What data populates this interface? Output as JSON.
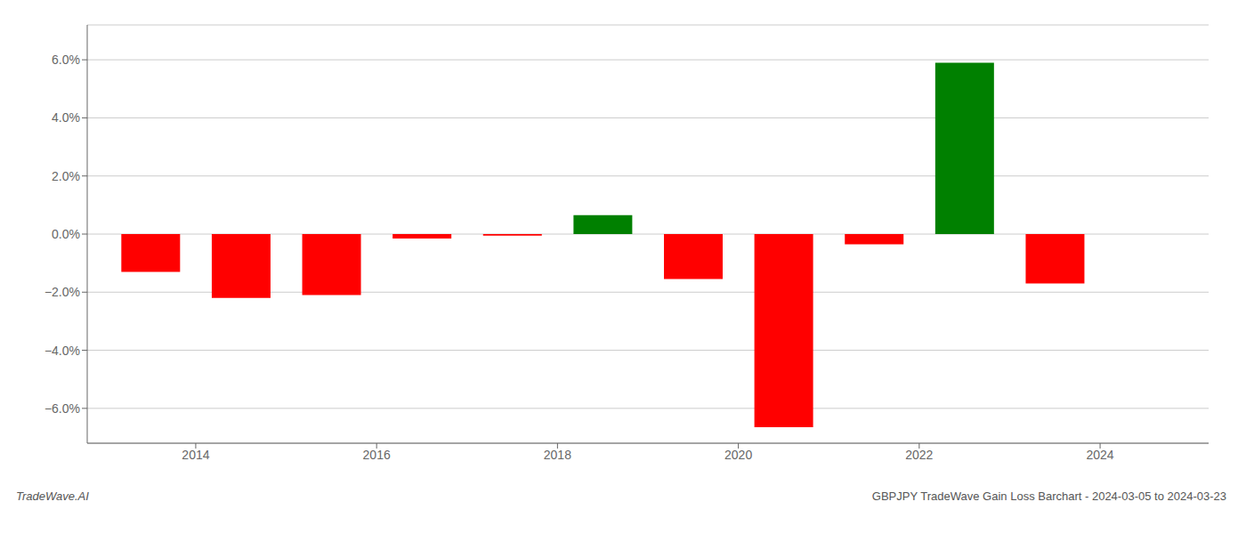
{
  "chart_data": {
    "type": "bar",
    "x": [
      2013.5,
      2014.5,
      2015.5,
      2016.5,
      2017.5,
      2018.5,
      2019.5,
      2020.5,
      2021.5,
      2022.5,
      2023.5
    ],
    "values": [
      -1.3,
      -2.2,
      -2.1,
      -0.15,
      -0.05,
      0.65,
      -1.55,
      -6.65,
      -0.35,
      5.9,
      -1.7
    ],
    "colors": [
      "#ff0000",
      "#ff0000",
      "#ff0000",
      "#ff0000",
      "#ff0000",
      "#008000",
      "#ff0000",
      "#ff0000",
      "#ff0000",
      "#008000",
      "#ff0000"
    ],
    "xlim": [
      2012.8,
      2025.2
    ],
    "xticks": [
      2014,
      2016,
      2018,
      2020,
      2022,
      2024
    ],
    "ylim": [
      -7.2,
      7.2
    ],
    "yticks": [
      {
        "value": -6.0,
        "label": "−6.0%"
      },
      {
        "value": -4.0,
        "label": "−4.0%"
      },
      {
        "value": -2.0,
        "label": "−2.0%"
      },
      {
        "value": 0.0,
        "label": "0.0%"
      },
      {
        "value": 2.0,
        "label": "2.0%"
      },
      {
        "value": 4.0,
        "label": "4.0%"
      },
      {
        "value": 6.0,
        "label": "6.0%"
      }
    ],
    "grid": true,
    "annotations": [
      "TradeWave.AI",
      "GBPJPY TradeWave Gain Loss Barchart - 2024-03-05 to 2024-03-23"
    ]
  }
}
